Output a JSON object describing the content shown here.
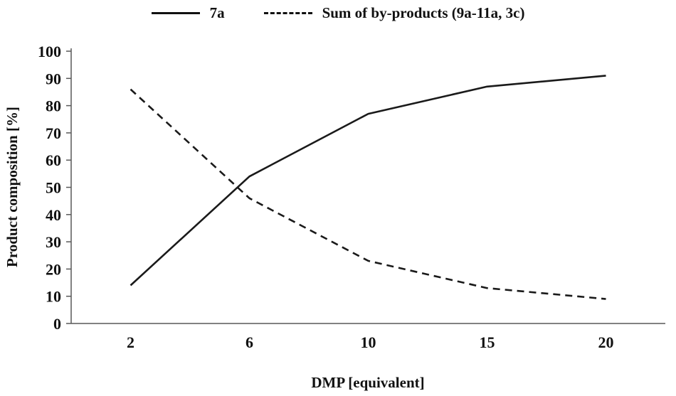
{
  "chart_data": {
    "type": "line",
    "title": "",
    "categories": [
      "2",
      "6",
      "10",
      "15",
      "20"
    ],
    "series": [
      {
        "name": "7a",
        "style": "solid",
        "values": [
          14,
          54,
          77,
          87,
          91
        ]
      },
      {
        "name": "Sum of by-products (9a-11a, 3c)",
        "style": "dashed",
        "values": [
          86,
          46,
          23,
          13,
          9
        ]
      }
    ],
    "xlabel": "DMP [equivalent]",
    "ylabel": "Product composition [%]",
    "ylim": [
      0,
      100
    ],
    "yticks": [
      0,
      10,
      20,
      30,
      40,
      50,
      60,
      70,
      80,
      90,
      100
    ],
    "grid": false,
    "legend_position": "top",
    "colors": {
      "line": "#1a1a1a",
      "axis": "#595959",
      "text": "#111111"
    }
  }
}
